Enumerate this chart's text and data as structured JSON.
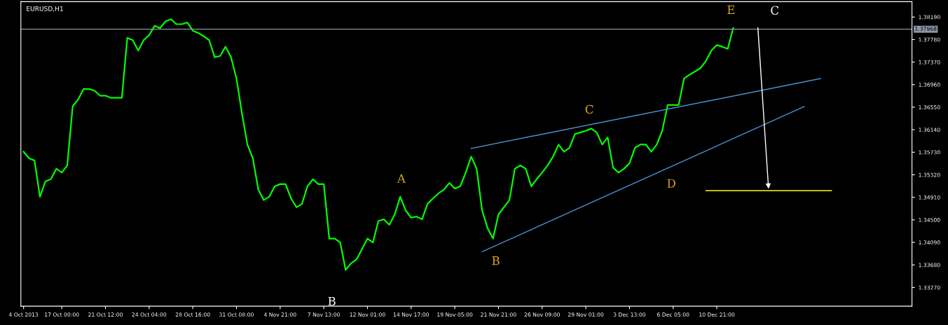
{
  "chart_data": {
    "type": "line",
    "title": "EURUSD,H1",
    "categories": [
      "4 Oct 2013",
      null,
      null,
      null,
      null,
      null,
      null,
      "17 Oct 00:00",
      null,
      null,
      null,
      null,
      null,
      null,
      null,
      "21 Oct 12:00",
      null,
      null,
      null,
      null,
      null,
      null,
      null,
      "24 Oct 04:00",
      null,
      null,
      null,
      null,
      null,
      null,
      null,
      "28 Oct 16:00",
      null,
      null,
      null,
      null,
      null,
      null,
      null,
      "31 Oct 08:00",
      null,
      null,
      null,
      null,
      null,
      null,
      null,
      "4 Nov 21:00",
      null,
      null,
      null,
      null,
      null,
      null,
      null,
      "7 Nov 13:00",
      null,
      null,
      null,
      null,
      null,
      null,
      null,
      "12 Nov 01:00",
      null,
      null,
      null,
      null,
      null,
      null,
      null,
      "14 Nov 17:00",
      null,
      null,
      null,
      null,
      null,
      null,
      null,
      "19 Nov 05:00",
      null,
      null,
      null,
      null,
      null,
      null,
      null,
      "21 Nov 21:00",
      null,
      null,
      null,
      null,
      null,
      null,
      null,
      "26 Nov 09:00",
      null,
      null,
      null,
      null,
      null,
      null,
      null,
      "29 Nov 01:00",
      null,
      null,
      null,
      null,
      null,
      null,
      null,
      "3 Dec 13:00",
      null,
      null,
      null,
      null,
      null,
      null,
      null,
      "6 Dec 05:00",
      null,
      null,
      null,
      null,
      null,
      null,
      null,
      "10 Dec 21:00",
      null,
      null,
      null,
      null,
      null,
      null,
      null,
      null,
      null,
      null,
      null,
      null,
      null,
      null,
      null,
      null,
      null,
      null,
      null,
      null,
      null,
      null,
      null,
      null,
      null,
      null,
      null,
      null,
      null,
      null,
      null,
      null,
      null,
      null,
      null
    ],
    "series": [
      {
        "color": "#00ff00",
        "values": [
          1.3574,
          1.3562,
          1.3558,
          1.3492,
          1.352,
          1.3524,
          1.3543,
          1.3536,
          1.3549,
          1.3657,
          1.3669,
          1.3688,
          1.3688,
          1.3685,
          1.3676,
          1.3676,
          1.3672,
          1.3672,
          1.3672,
          1.3781,
          1.3777,
          1.3758,
          1.3777,
          1.3786,
          1.3803,
          1.3799,
          1.3811,
          1.3815,
          1.3806,
          1.3806,
          1.3809,
          1.3794,
          1.379,
          1.3784,
          1.3777,
          1.3746,
          1.3748,
          1.3765,
          1.3746,
          1.3707,
          1.3644,
          1.3587,
          1.3562,
          1.3505,
          1.3486,
          1.3492,
          1.3511,
          1.3515,
          1.3515,
          1.3489,
          1.3473,
          1.3479,
          1.3511,
          1.3524,
          1.3515,
          1.3515,
          1.3416,
          1.3416,
          1.3409,
          1.3359,
          1.3371,
          1.3378,
          1.3397,
          1.3416,
          1.3409,
          1.3448,
          1.3451,
          1.3441,
          1.346,
          1.3492,
          1.3467,
          1.3454,
          1.3456,
          1.3451,
          1.3479,
          1.3489,
          1.3498,
          1.3505,
          1.3517,
          1.3507,
          1.3511,
          1.3536,
          1.3565,
          1.3543,
          1.3467,
          1.3435,
          1.3416,
          1.346,
          1.3473,
          1.3486,
          1.3543,
          1.3549,
          1.3543,
          1.3511,
          1.3524,
          1.3536,
          1.3549,
          1.3565,
          1.3587,
          1.3574,
          1.3581,
          1.3606,
          1.3609,
          1.3612,
          1.3616,
          1.3609,
          1.3587,
          1.36,
          1.3545,
          1.3536,
          1.3543,
          1.3553,
          1.3581,
          1.3587,
          1.3587,
          1.3574,
          1.3587,
          1.3612,
          1.3659,
          1.3659,
          1.3659,
          1.3707,
          1.3714,
          1.372,
          1.3726,
          1.3739,
          1.3758,
          1.3768,
          1.3765,
          1.3761,
          1.3799,
          null,
          null,
          null,
          null,
          null,
          null,
          null,
          null,
          null,
          null,
          null,
          null,
          null,
          null,
          null,
          null,
          null,
          null,
          null,
          null,
          null,
          null,
          null,
          null,
          null,
          null,
          null,
          null,
          null,
          null,
          null,
          null
        ]
      },
      {
        "type": "line",
        "color": "#4a90d0",
        "values": [
          null,
          null,
          null,
          null,
          null,
          null,
          null,
          null,
          null,
          null,
          null,
          null,
          null,
          null,
          null,
          null,
          null,
          null,
          null,
          null,
          null,
          null,
          null,
          null,
          null,
          null,
          null,
          null,
          null,
          null,
          null,
          null,
          null,
          null,
          null,
          null,
          null,
          null,
          null,
          null,
          null,
          null,
          null,
          null,
          null,
          null,
          null,
          null,
          null,
          null,
          null,
          null,
          null,
          null,
          null,
          null,
          null,
          null,
          null,
          null,
          null,
          null,
          null,
          null,
          null,
          null,
          null,
          null,
          null,
          null,
          null,
          null,
          null,
          null,
          null,
          null,
          null,
          null,
          null,
          null,
          null,
          null,
          1.358,
          null,
          null,
          null,
          null,
          null,
          null,
          null,
          null,
          null,
          null,
          null,
          null,
          null,
          null,
          null,
          null,
          null,
          null,
          null,
          null,
          null,
          null,
          null,
          null,
          null,
          null,
          null,
          null,
          null,
          null,
          null,
          null,
          null,
          null,
          null,
          null,
          null,
          null,
          null,
          null,
          null,
          null,
          null,
          null,
          null,
          null,
          null,
          null,
          null,
          null,
          null,
          null,
          null,
          null,
          null,
          null,
          null,
          null,
          null,
          null,
          null,
          null,
          null,
          1.3707,
          null,
          null,
          null,
          null,
          null,
          null,
          null,
          null,
          null,
          null,
          null,
          null,
          null,
          null,
          null,
          null
        ]
      },
      {
        "type": "line",
        "color": "#4a90d0",
        "values": [
          null,
          null,
          null,
          null,
          null,
          null,
          null,
          null,
          null,
          null,
          null,
          null,
          null,
          null,
          null,
          null,
          null,
          null,
          null,
          null,
          null,
          null,
          null,
          null,
          null,
          null,
          null,
          null,
          null,
          null,
          null,
          null,
          null,
          null,
          null,
          null,
          null,
          null,
          null,
          null,
          null,
          null,
          null,
          null,
          null,
          null,
          null,
          null,
          null,
          null,
          null,
          null,
          null,
          null,
          null,
          null,
          null,
          null,
          null,
          null,
          null,
          null,
          null,
          null,
          null,
          null,
          null,
          null,
          null,
          null,
          null,
          null,
          null,
          null,
          null,
          null,
          null,
          null,
          null,
          null,
          null,
          null,
          null,
          null,
          1.3392,
          null,
          null,
          null,
          null,
          null,
          null,
          null,
          null,
          null,
          null,
          null,
          null,
          null,
          null,
          null,
          null,
          null,
          null,
          null,
          null,
          null,
          null,
          null,
          null,
          null,
          null,
          null,
          null,
          null,
          null,
          null,
          null,
          null,
          null,
          null,
          null,
          null,
          null,
          null,
          null,
          null,
          null,
          null,
          null,
          null,
          null,
          null,
          null,
          null,
          null,
          null,
          null,
          null,
          null,
          null,
          null,
          null,
          null,
          1.3656,
          null,
          null,
          null,
          null,
          null,
          null,
          null,
          null,
          null,
          null,
          null,
          null,
          null,
          null,
          null,
          null,
          null,
          null,
          null
        ]
      },
      {
        "type": "line",
        "color": "#ffff00",
        "values": [
          null,
          null,
          null,
          null,
          null,
          null,
          null,
          null,
          null,
          null,
          null,
          null,
          null,
          null,
          null,
          null,
          null,
          null,
          null,
          null,
          null,
          null,
          null,
          null,
          null,
          null,
          null,
          null,
          null,
          null,
          null,
          null,
          null,
          null,
          null,
          null,
          null,
          null,
          null,
          null,
          null,
          null,
          null,
          null,
          null,
          null,
          null,
          null,
          null,
          null,
          null,
          null,
          null,
          null,
          null,
          null,
          null,
          null,
          null,
          null,
          null,
          null,
          null,
          null,
          null,
          null,
          null,
          null,
          null,
          null,
          null,
          null,
          null,
          null,
          null,
          null,
          null,
          null,
          null,
          null,
          null,
          null,
          null,
          null,
          null,
          null,
          null,
          null,
          null,
          null,
          null,
          null,
          null,
          null,
          null,
          null,
          null,
          null,
          null,
          null,
          null,
          null,
          null,
          null,
          null,
          null,
          null,
          null,
          null,
          null,
          null,
          null,
          null,
          null,
          null,
          null,
          null,
          null,
          null,
          null,
          null,
          null,
          null,
          null,
          null,
          1.3503,
          null,
          null,
          null,
          null,
          null,
          null,
          null,
          null,
          null,
          null,
          null,
          null,
          null,
          null,
          null,
          null,
          null,
          null,
          null,
          null,
          null,
          null,
          1.3503,
          null,
          null,
          null,
          null,
          null,
          null,
          null,
          null,
          null,
          null,
          null,
          null,
          null,
          null
        ]
      }
    ],
    "ylim": [
      1.3293,
      1.3847
    ],
    "yticks": [
      {
        "value": 1.3819,
        "label": "1.38190"
      },
      {
        "value": 1.3778,
        "label": "1.37780"
      },
      {
        "value": 1.3737,
        "label": "1.37370"
      },
      {
        "value": 1.3696,
        "label": "1.36960"
      },
      {
        "value": 1.3655,
        "label": "1.36550"
      },
      {
        "value": 1.3614,
        "label": "1.36140"
      },
      {
        "value": 1.3573,
        "label": "1.35730"
      },
      {
        "value": 1.3532,
        "label": "1.35320"
      },
      {
        "value": 1.3491,
        "label": "1.34910"
      },
      {
        "value": 1.345,
        "label": "1.34500"
      },
      {
        "value": 1.3409,
        "label": "1.34090"
      },
      {
        "value": 1.3368,
        "label": "1.33680"
      },
      {
        "value": 1.3327,
        "label": "1.33270"
      }
    ],
    "ref_lines": [
      {
        "axis": "y",
        "value": 1.37968,
        "label": "1.37968",
        "color": "#8c98a4"
      }
    ],
    "annotations": [
      "A",
      "B",
      "B",
      "C",
      "D",
      "E",
      "C"
    ],
    "grid": false,
    "legend": false,
    "marker": "none",
    "line_style": "solid"
  }
}
